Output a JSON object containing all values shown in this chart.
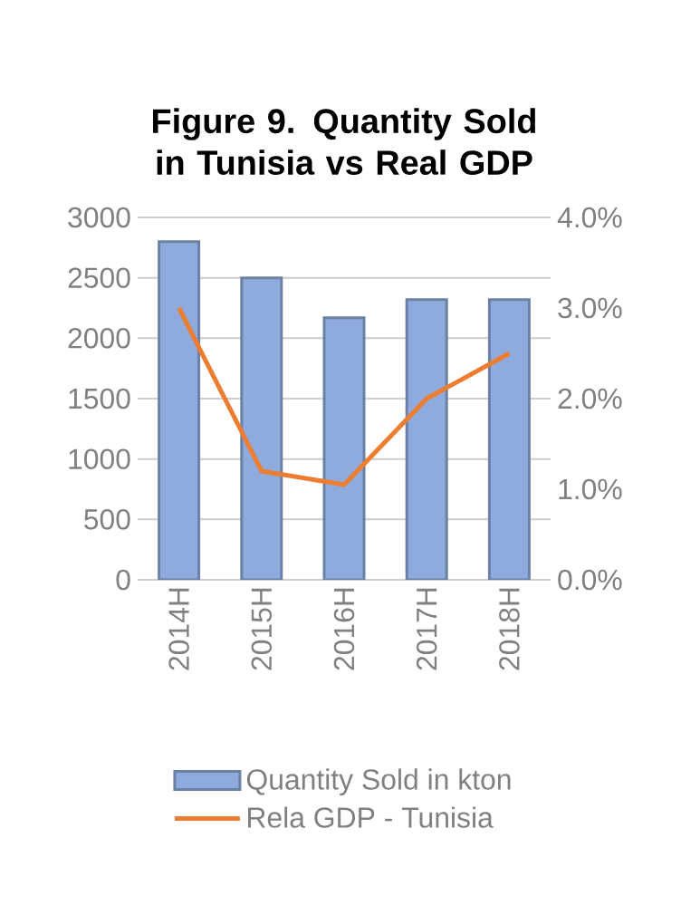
{
  "chart_data": {
    "type": "bar",
    "title": "Figure 9. Quantity Sold in Tunisia vs Real GDP",
    "categories": [
      "2014H",
      "2015H",
      "2016H",
      "2017H",
      "2018H"
    ],
    "series": [
      {
        "name": "Quantity Sold in kton",
        "color": "#8faadc",
        "values": [
          2800,
          2500,
          2170,
          2320,
          2320
        ]
      },
      {
        "name": "Rela GDP - Tunisia",
        "type": "line",
        "axis": "y2",
        "color": "#ed7d31",
        "values": [
          3.0,
          1.2,
          1.05,
          2.0,
          2.5
        ]
      }
    ],
    "ylim": [
      0,
      3000
    ],
    "yticks": [
      0,
      500,
      1000,
      1500,
      2000,
      2500,
      3000
    ],
    "y2lim": [
      0,
      4.0
    ],
    "y2ticks": [
      {
        "value": 0,
        "label": "0.0%"
      },
      {
        "value": 1.0,
        "label": "1.0%"
      },
      {
        "value": 2.0,
        "label": "2.0%"
      },
      {
        "value": 3.0,
        "label": "3.0%"
      },
      {
        "value": 4.0,
        "label": "4.0%"
      }
    ],
    "grid": "y",
    "legend": "bottom"
  }
}
